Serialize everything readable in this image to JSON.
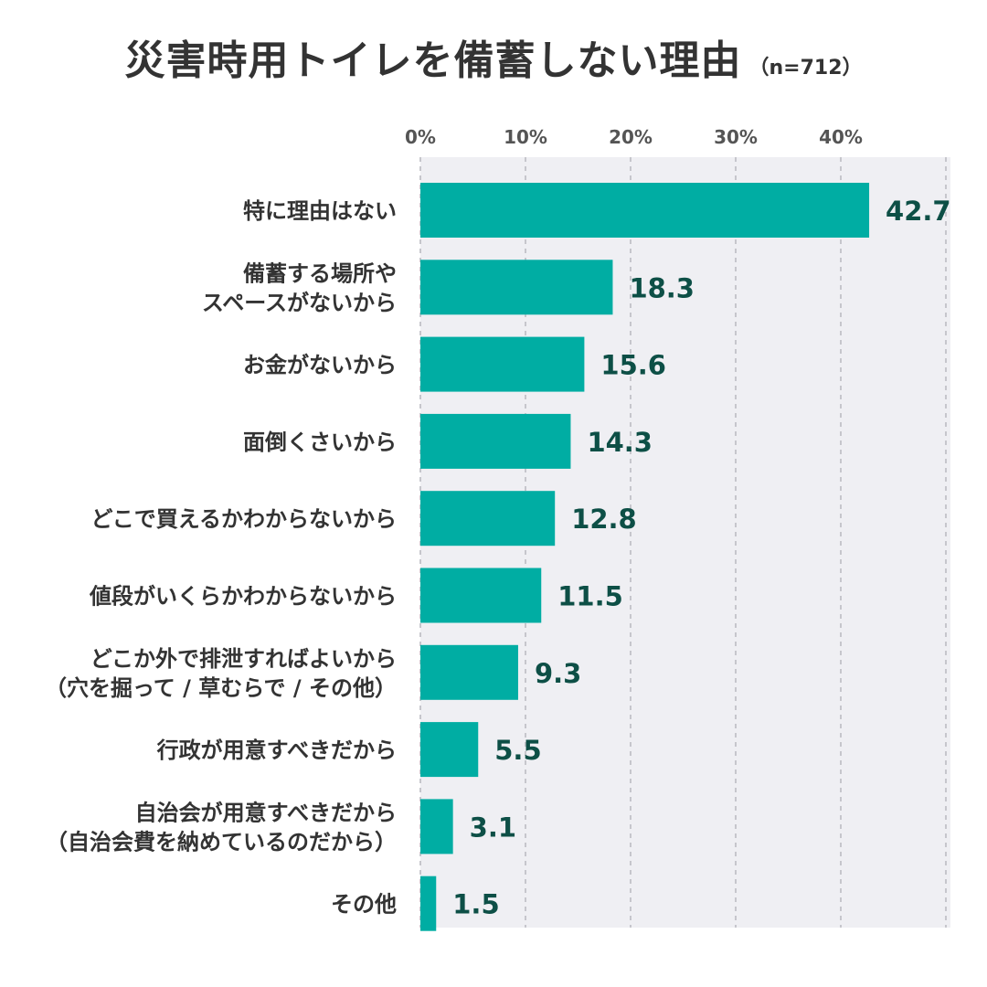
{
  "title": "災害時用トイレを備蓄しない理由",
  "sample_size": "（n=712）",
  "chart_data": {
    "type": "bar",
    "orientation": "horizontal",
    "categories": [
      [
        "特に理由はない"
      ],
      [
        "備蓄する場所や",
        "スペースがないから"
      ],
      [
        "お金がないから"
      ],
      [
        "面倒くさいから"
      ],
      [
        "どこで買えるかわからないから"
      ],
      [
        "値段がいくらかわからないから"
      ],
      [
        "どこか外で排泄すればよいから",
        "（穴を掘って / 草むらで / その他）"
      ],
      [
        "行政が用意すべきだから"
      ],
      [
        "自治会が用意すべきだから",
        "（自治会費を納めているのだから）"
      ],
      [
        "その他"
      ]
    ],
    "values": [
      42.7,
      18.3,
      15.6,
      14.3,
      12.8,
      11.5,
      9.3,
      5.5,
      3.1,
      1.5
    ],
    "value_labels": [
      "42.7",
      "18.3",
      "15.6",
      "14.3",
      "12.8",
      "11.5",
      "9.3",
      "5.5",
      "3.1",
      "1.5"
    ],
    "xlim": [
      0,
      50
    ],
    "ticks": [
      0,
      10,
      20,
      30,
      40
    ],
    "tick_labels": [
      "0%",
      "10%",
      "20%",
      "30%",
      "40%"
    ],
    "grid": true,
    "bar_color": "#00ada3",
    "value_label_color": "#0d4f46",
    "plot_background": "#efeff3",
    "grid_color": "#c6c6cc"
  }
}
